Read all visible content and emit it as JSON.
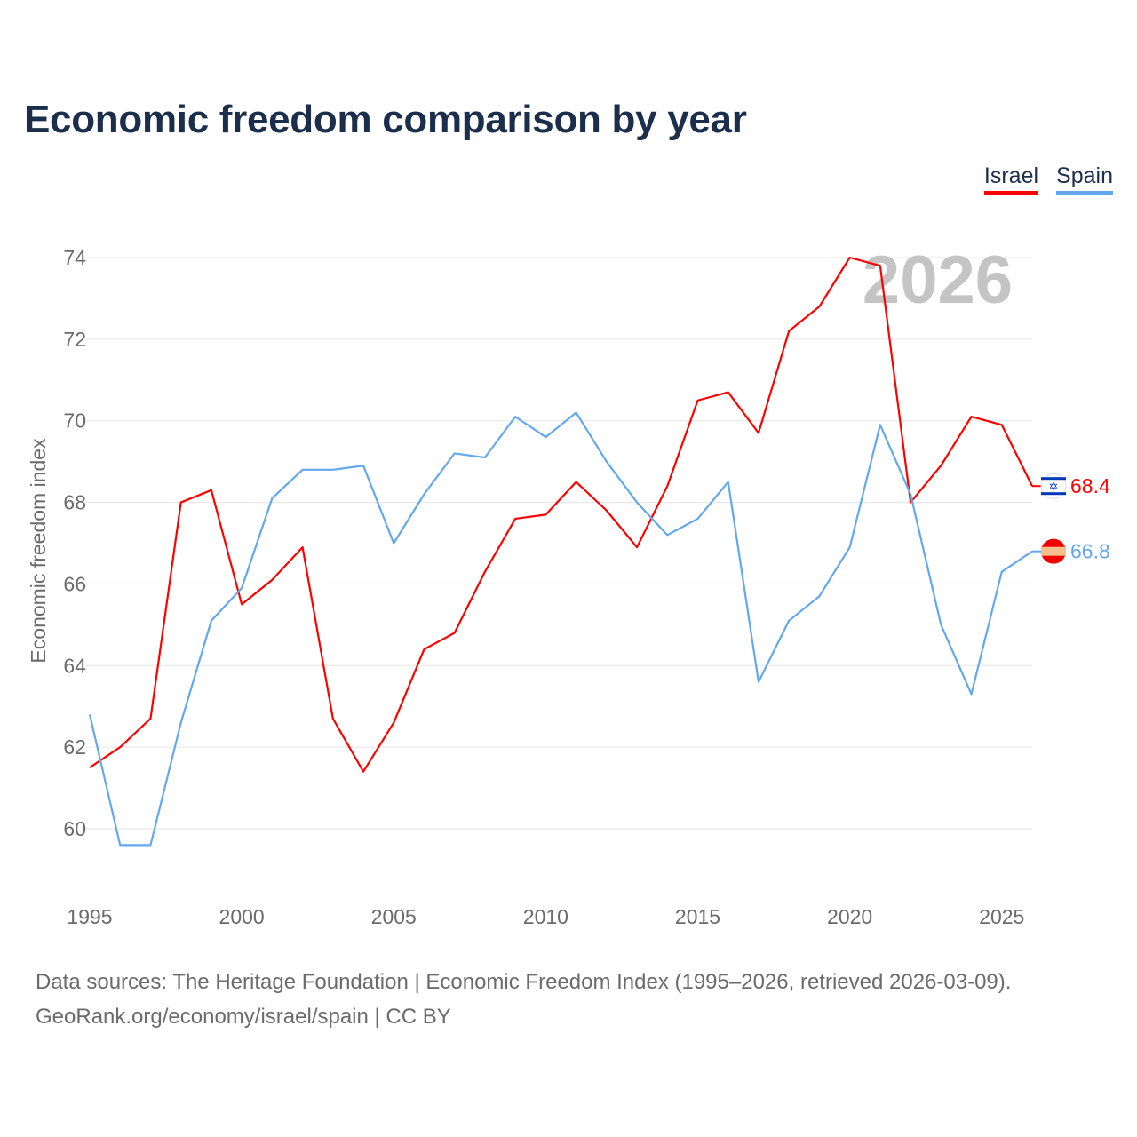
{
  "chart_data": {
    "type": "line",
    "title": "Economic freedom comparison by year",
    "xlabel": "",
    "ylabel": "Economic freedom index",
    "watermark": "2026",
    "x": [
      1995,
      1996,
      1997,
      1998,
      1999,
      2000,
      2001,
      2002,
      2003,
      2004,
      2005,
      2006,
      2007,
      2008,
      2009,
      2010,
      2011,
      2012,
      2013,
      2014,
      2015,
      2016,
      2017,
      2018,
      2019,
      2020,
      2021,
      2022,
      2023,
      2024,
      2025,
      2026
    ],
    "xticks": [
      "1995",
      "2000",
      "2005",
      "2010",
      "2015",
      "2020",
      "2025"
    ],
    "yticks": [
      "60",
      "62",
      "64",
      "66",
      "68",
      "70",
      "72",
      "74"
    ],
    "ylim": [
      58.3,
      74
    ],
    "xlim": [
      1995,
      2026
    ],
    "grid": true,
    "legend_placement": "top-right",
    "series": [
      {
        "name": "Israel",
        "color": "#ff0000",
        "end_label": "68.4",
        "values": [
          61.5,
          62.0,
          62.7,
          68.0,
          68.3,
          65.5,
          66.1,
          66.9,
          62.7,
          61.4,
          62.6,
          64.4,
          64.8,
          66.3,
          67.6,
          67.7,
          68.5,
          67.8,
          66.9,
          68.4,
          70.5,
          70.7,
          69.7,
          72.2,
          72.8,
          74.0,
          73.8,
          68.0,
          68.9,
          70.1,
          69.9,
          68.4
        ]
      },
      {
        "name": "Spain",
        "color": "#63a8ee",
        "end_label": "66.8",
        "values": [
          62.8,
          59.6,
          59.6,
          62.6,
          65.1,
          65.9,
          68.1,
          68.8,
          68.8,
          68.9,
          67.0,
          68.2,
          69.2,
          69.1,
          70.1,
          69.6,
          70.2,
          69.0,
          68.0,
          67.2,
          67.6,
          68.5,
          63.6,
          65.1,
          65.7,
          66.9,
          69.9,
          68.2,
          65.0,
          63.3,
          66.3,
          66.8
        ]
      }
    ]
  },
  "footer": {
    "line1": "Data sources: The Heritage Foundation | Economic Freedom Index (1995–2026, retrieved 2026-03-09).",
    "line2": "GeoRank.org/economy/israel/spain | CC BY"
  }
}
